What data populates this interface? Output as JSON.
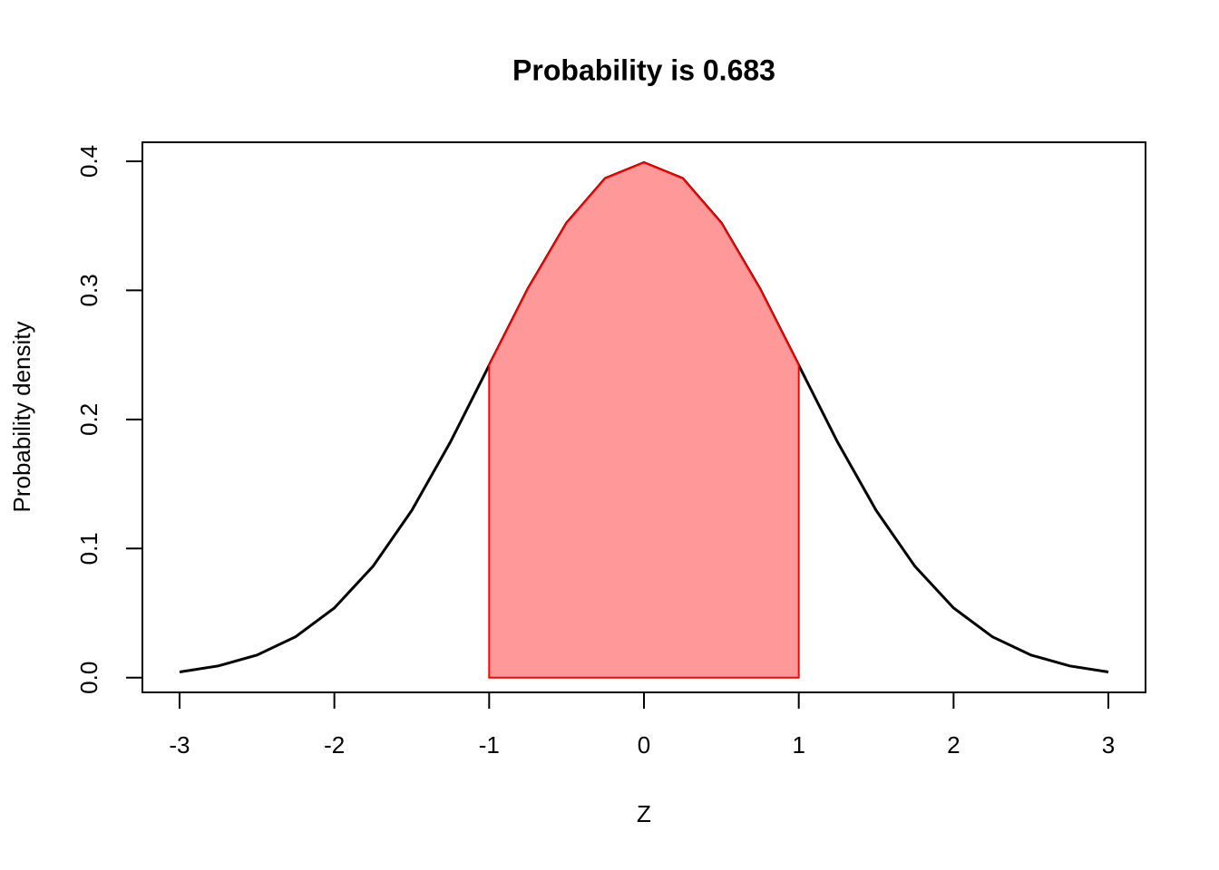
{
  "chart_data": {
    "type": "line",
    "title": "Probability is 0.683",
    "x_label": "Z",
    "y_label": "Probability density",
    "x": [
      -3,
      -2.75,
      -2.5,
      -2.25,
      -2,
      -1.75,
      -1.5,
      -1.25,
      -1,
      -0.75,
      -0.5,
      -0.25,
      0,
      0.25,
      0.5,
      0.75,
      1,
      1.25,
      1.5,
      1.75,
      2,
      2.25,
      2.5,
      2.75,
      3
    ],
    "series": [
      {
        "color": "#000000",
        "values": [
          0.0044,
          0.0091,
          0.0175,
          0.0317,
          0.054,
          0.0863,
          0.1295,
          0.1826,
          0.242,
          0.3011,
          0.3521,
          0.3867,
          0.3989,
          0.3867,
          0.3521,
          0.3011,
          0.242,
          0.1826,
          0.1295,
          0.0863,
          0.054,
          0.0317,
          0.0175,
          0.0091,
          0.0044
        ]
      },
      {
        "type": "area",
        "color": "#ff0000",
        "fill": "#ff9999",
        "values": [
          null,
          null,
          null,
          null,
          null,
          null,
          null,
          null,
          0.242,
          0.3011,
          0.3521,
          0.3867,
          0.3989,
          0.3867,
          0.3521,
          0.3011,
          0.242,
          null,
          null,
          null,
          null,
          null,
          null,
          null,
          null
        ]
      }
    ],
    "xlim": [
      -3.24,
      3.24
    ],
    "ylim": [
      -0.0114,
      0.4147
    ],
    "xticks": [
      -3,
      -2,
      -1,
      0,
      1,
      2,
      3
    ],
    "yticks": [
      {
        "value": 0,
        "label": "0.0"
      },
      0.1,
      0.2,
      0.3,
      0.4
    ]
  }
}
